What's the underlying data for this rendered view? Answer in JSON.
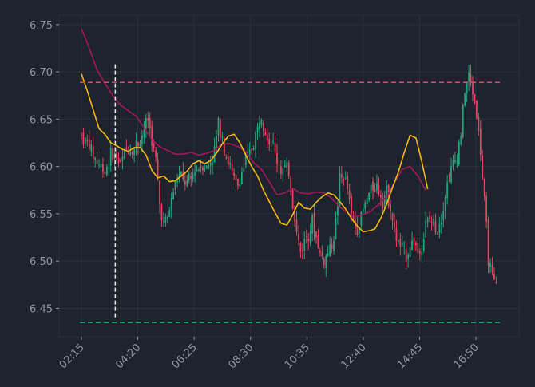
{
  "chart_data": {
    "type": "candlestick",
    "title": "",
    "xlabel": "",
    "ylabel": "",
    "ylim": [
      6.42,
      6.76
    ],
    "yticks": [
      "6.45",
      "6.50",
      "6.55",
      "6.60",
      "6.65",
      "6.70",
      "6.75"
    ],
    "xticks": [
      "02:15",
      "04:20",
      "06:25",
      "08:30",
      "10:35",
      "12:40",
      "14:45",
      "16:50"
    ],
    "grid": true,
    "colors": {
      "background": "#1e232d",
      "grid": "#2b313d",
      "up": "#26a17b",
      "down": "#e04461",
      "ma_fast": "#f0b90b",
      "ma_slow": "#a0195a",
      "resistance": "#e04461",
      "support": "#26a17b",
      "marker": "#e6e6e6"
    },
    "resistance_level": 6.689,
    "support_level": 6.435,
    "vertical_marker_x": "03:30",
    "close_series": [
      [
        0,
        6.632
      ],
      [
        2,
        6.627
      ],
      [
        4,
        6.622
      ],
      [
        6,
        6.612
      ],
      [
        8,
        6.605
      ],
      [
        10,
        6.6
      ],
      [
        12,
        6.596
      ],
      [
        14,
        6.606
      ],
      [
        16,
        6.614
      ],
      [
        18,
        6.608
      ],
      [
        20,
        6.602
      ],
      [
        22,
        6.615
      ],
      [
        24,
        6.62
      ],
      [
        26,
        6.617
      ],
      [
        28,
        6.623
      ],
      [
        30,
        6.628
      ],
      [
        32,
        6.64
      ],
      [
        34,
        6.65
      ],
      [
        36,
        6.628
      ],
      [
        38,
        6.605
      ],
      [
        40,
        6.56
      ],
      [
        42,
        6.54
      ],
      [
        44,
        6.545
      ],
      [
        46,
        6.565
      ],
      [
        48,
        6.583
      ],
      [
        50,
        6.59
      ],
      [
        52,
        6.585
      ],
      [
        54,
        6.581
      ],
      [
        56,
        6.586
      ],
      [
        58,
        6.596
      ],
      [
        60,
        6.6
      ],
      [
        62,
        6.603
      ],
      [
        64,
        6.598
      ],
      [
        66,
        6.606
      ],
      [
        68,
        6.616
      ],
      [
        70,
        6.646
      ],
      [
        72,
        6.633
      ],
      [
        74,
        6.61
      ],
      [
        76,
        6.6
      ],
      [
        78,
        6.585
      ],
      [
        80,
        6.58
      ],
      [
        82,
        6.594
      ],
      [
        84,
        6.606
      ],
      [
        86,
        6.614
      ],
      [
        88,
        6.625
      ],
      [
        90,
        6.64
      ],
      [
        92,
        6.658
      ],
      [
        94,
        6.64
      ],
      [
        96,
        6.628
      ],
      [
        98,
        6.622
      ],
      [
        100,
        6.606
      ],
      [
        102,
        6.598
      ],
      [
        104,
        6.596
      ],
      [
        106,
        6.594
      ],
      [
        108,
        6.56
      ],
      [
        110,
        6.53
      ],
      [
        112,
        6.51
      ],
      [
        114,
        6.522
      ],
      [
        116,
        6.533
      ],
      [
        118,
        6.541
      ],
      [
        120,
        6.525
      ],
      [
        122,
        6.508
      ],
      [
        124,
        6.5
      ],
      [
        126,
        6.509
      ],
      [
        128,
        6.518
      ],
      [
        130,
        6.54
      ],
      [
        132,
        6.585
      ],
      [
        134,
        6.59
      ],
      [
        136,
        6.576
      ],
      [
        138,
        6.548
      ],
      [
        140,
        6.536
      ],
      [
        142,
        6.54
      ],
      [
        144,
        6.554
      ],
      [
        146,
        6.566
      ],
      [
        148,
        6.576
      ],
      [
        150,
        6.582
      ],
      [
        152,
        6.575
      ],
      [
        154,
        6.567
      ],
      [
        156,
        6.572
      ],
      [
        158,
        6.56
      ],
      [
        160,
        6.528
      ],
      [
        162,
        6.52
      ],
      [
        164,
        6.511
      ],
      [
        166,
        6.507
      ],
      [
        168,
        6.517
      ],
      [
        170,
        6.522
      ],
      [
        172,
        6.51
      ],
      [
        174,
        6.513
      ],
      [
        176,
        6.538
      ],
      [
        178,
        6.544
      ],
      [
        180,
        6.538
      ],
      [
        182,
        6.536
      ],
      [
        184,
        6.55
      ],
      [
        186,
        6.57
      ],
      [
        188,
        6.592
      ],
      [
        190,
        6.601
      ],
      [
        192,
        6.612
      ],
      [
        194,
        6.637
      ],
      [
        196,
        6.68
      ],
      [
        198,
        6.695
      ],
      [
        200,
        6.68
      ],
      [
        202,
        6.655
      ],
      [
        204,
        6.615
      ],
      [
        206,
        6.56
      ],
      [
        208,
        6.505
      ],
      [
        210,
        6.48
      ],
      [
        212,
        6.472
      ]
    ],
    "ma_fast": [
      [
        0,
        6.698
      ],
      [
        3,
        6.68
      ],
      [
        6,
        6.66
      ],
      [
        9,
        6.64
      ],
      [
        12,
        6.634
      ],
      [
        15,
        6.625
      ],
      [
        18,
        6.622
      ],
      [
        21,
        6.618
      ],
      [
        24,
        6.616
      ],
      [
        27,
        6.62
      ],
      [
        30,
        6.62
      ],
      [
        33,
        6.612
      ],
      [
        36,
        6.596
      ],
      [
        39,
        6.588
      ],
      [
        42,
        6.59
      ],
      [
        45,
        6.584
      ],
      [
        48,
        6.585
      ],
      [
        51,
        6.59
      ],
      [
        54,
        6.595
      ],
      [
        57,
        6.603
      ],
      [
        60,
        6.606
      ],
      [
        63,
        6.603
      ],
      [
        66,
        6.606
      ],
      [
        69,
        6.614
      ],
      [
        72,
        6.624
      ],
      [
        75,
        6.632
      ],
      [
        78,
        6.634
      ],
      [
        81,
        6.625
      ],
      [
        84,
        6.612
      ],
      [
        87,
        6.6
      ],
      [
        90,
        6.59
      ],
      [
        93,
        6.575
      ],
      [
        96,
        6.563
      ],
      [
        99,
        6.551
      ],
      [
        102,
        6.54
      ],
      [
        105,
        6.538
      ],
      [
        108,
        6.549
      ],
      [
        111,
        6.562
      ],
      [
        114,
        6.556
      ],
      [
        117,
        6.555
      ],
      [
        120,
        6.562
      ],
      [
        123,
        6.568
      ],
      [
        126,
        6.572
      ],
      [
        129,
        6.57
      ],
      [
        132,
        6.563
      ],
      [
        135,
        6.555
      ],
      [
        138,
        6.545
      ],
      [
        141,
        6.537
      ],
      [
        144,
        6.531
      ],
      [
        147,
        6.532
      ],
      [
        150,
        6.534
      ],
      [
        153,
        6.545
      ],
      [
        156,
        6.56
      ],
      [
        159,
        6.578
      ],
      [
        162,
        6.594
      ],
      [
        165,
        6.615
      ],
      [
        168,
        6.633
      ],
      [
        171,
        6.63
      ],
      [
        174,
        6.605
      ],
      [
        177,
        6.576
      ]
    ],
    "ma_slow": [
      [
        0,
        6.746
      ],
      [
        4,
        6.725
      ],
      [
        8,
        6.702
      ],
      [
        12,
        6.688
      ],
      [
        16,
        6.675
      ],
      [
        20,
        6.665
      ],
      [
        24,
        6.659
      ],
      [
        28,
        6.653
      ],
      [
        32,
        6.641
      ],
      [
        36,
        6.628
      ],
      [
        40,
        6.621
      ],
      [
        44,
        6.617
      ],
      [
        48,
        6.613
      ],
      [
        52,
        6.613
      ],
      [
        56,
        6.615
      ],
      [
        60,
        6.612
      ],
      [
        64,
        6.614
      ],
      [
        68,
        6.617
      ],
      [
        72,
        6.624
      ],
      [
        76,
        6.624
      ],
      [
        80,
        6.621
      ],
      [
        84,
        6.616
      ],
      [
        88,
        6.604
      ],
      [
        92,
        6.597
      ],
      [
        96,
        6.584
      ],
      [
        100,
        6.57
      ],
      [
        104,
        6.572
      ],
      [
        108,
        6.577
      ],
      [
        112,
        6.572
      ],
      [
        116,
        6.571
      ],
      [
        120,
        6.573
      ],
      [
        124,
        6.572
      ],
      [
        128,
        6.566
      ],
      [
        132,
        6.557
      ],
      [
        136,
        6.551
      ],
      [
        140,
        6.547
      ],
      [
        144,
        6.549
      ],
      [
        148,
        6.553
      ],
      [
        152,
        6.56
      ],
      [
        156,
        6.568
      ],
      [
        160,
        6.583
      ],
      [
        164,
        6.597
      ],
      [
        168,
        6.6
      ],
      [
        172,
        6.59
      ],
      [
        176,
        6.575
      ]
    ]
  }
}
